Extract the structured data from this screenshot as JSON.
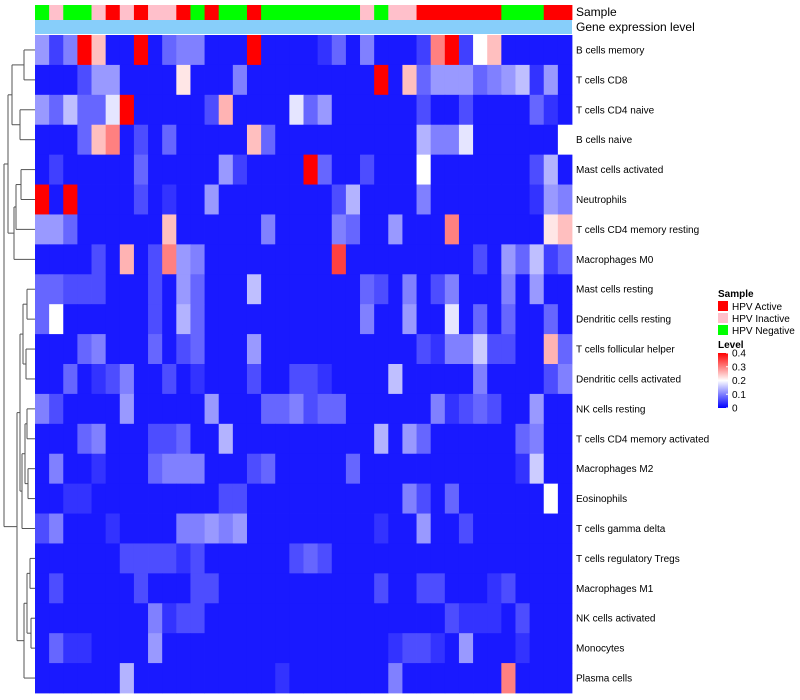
{
  "chart_data": {
    "type": "heatmap",
    "annotation_labels": {
      "sample": "Sample",
      "level": "Gene expression level"
    },
    "samples": [
      "Negative",
      "Inactive",
      "Negative",
      "Negative",
      "Inactive",
      "Active",
      "Inactive",
      "Active",
      "Inactive",
      "Inactive",
      "Active",
      "Negative",
      "Active",
      "Negative",
      "Negative",
      "Active",
      "Negative",
      "Negative",
      "Negative",
      "Negative",
      "Negative",
      "Negative",
      "Negative",
      "Inactive",
      "Negative",
      "Inactive",
      "Inactive",
      "Active",
      "Active",
      "Active",
      "Active",
      "Active",
      "Active",
      "Negative",
      "Negative",
      "Negative",
      "Active",
      "Active"
    ],
    "rows": [
      {
        "name": "B cells memory",
        "values": [
          0.12,
          0.05,
          0.1,
          0.4,
          0.25,
          0.02,
          0.02,
          0.4,
          0.02,
          0.08,
          0.1,
          0.1,
          0.02,
          0.02,
          0.02,
          0.4,
          0.02,
          0.02,
          0.02,
          0.02,
          0.04,
          0.08,
          0.02,
          0.1,
          0.02,
          0.02,
          0.02,
          0.05,
          0.3,
          0.4,
          0.05,
          0.2,
          0.25,
          0.02,
          0.02,
          0.02,
          0.02,
          0.02
        ]
      },
      {
        "name": "T cells CD8",
        "values": [
          0.02,
          0.02,
          0.02,
          0.06,
          0.12,
          0.12,
          0.02,
          0.02,
          0.02,
          0.02,
          0.22,
          0.02,
          0.02,
          0.02,
          0.1,
          0.02,
          0.02,
          0.02,
          0.02,
          0.02,
          0.02,
          0.02,
          0.02,
          0.02,
          0.4,
          0.02,
          0.25,
          0.08,
          0.12,
          0.12,
          0.12,
          0.08,
          0.1,
          0.12,
          0.15,
          0.04,
          0.12,
          0.02
        ]
      },
      {
        "name": "T cells CD4 naive",
        "values": [
          0.12,
          0.08,
          0.15,
          0.08,
          0.08,
          0.18,
          0.4,
          0.02,
          0.02,
          0.02,
          0.02,
          0.02,
          0.06,
          0.26,
          0.02,
          0.02,
          0.02,
          0.02,
          0.18,
          0.08,
          0.12,
          0.02,
          0.02,
          0.02,
          0.02,
          0.02,
          0.02,
          0.06,
          0.02,
          0.02,
          0.06,
          0.02,
          0.02,
          0.02,
          0.02,
          0.08,
          0.04,
          0.02
        ]
      },
      {
        "name": "B cells naive",
        "values": [
          0.02,
          0.02,
          0.02,
          0.08,
          0.25,
          0.3,
          0.02,
          0.06,
          0.02,
          0.08,
          0.02,
          0.02,
          0.02,
          0.02,
          0.02,
          0.25,
          0.08,
          0.02,
          0.02,
          0.02,
          0.02,
          0.02,
          0.02,
          0.02,
          0.02,
          0.02,
          0.02,
          0.14,
          0.1,
          0.1,
          0.18,
          0.02,
          0.02,
          0.02,
          0.02,
          0.02,
          0.02,
          0.2
        ]
      },
      {
        "name": "Mast cells activated",
        "values": [
          0.02,
          0.05,
          0.02,
          0.02,
          0.02,
          0.02,
          0.02,
          0.08,
          0.02,
          0.02,
          0.02,
          0.02,
          0.02,
          0.12,
          0.05,
          0.02,
          0.02,
          0.02,
          0.02,
          0.4,
          0.08,
          0.02,
          0.02,
          0.06,
          0.02,
          0.02,
          0.02,
          0.2,
          0.02,
          0.02,
          0.02,
          0.02,
          0.02,
          0.02,
          0.02,
          0.06,
          0.14,
          0.02
        ]
      },
      {
        "name": "Neutrophils",
        "values": [
          0.4,
          0.02,
          0.4,
          0.02,
          0.02,
          0.02,
          0.02,
          0.06,
          0.02,
          0.04,
          0.02,
          0.02,
          0.12,
          0.02,
          0.02,
          0.02,
          0.02,
          0.02,
          0.02,
          0.02,
          0.02,
          0.06,
          0.14,
          0.02,
          0.02,
          0.02,
          0.02,
          0.1,
          0.02,
          0.02,
          0.02,
          0.02,
          0.02,
          0.02,
          0.02,
          0.04,
          0.12,
          0.1
        ]
      },
      {
        "name": "T cells CD4 memory resting",
        "values": [
          0.12,
          0.12,
          0.08,
          0.02,
          0.02,
          0.02,
          0.02,
          0.02,
          0.02,
          0.25,
          0.02,
          0.02,
          0.02,
          0.02,
          0.02,
          0.02,
          0.1,
          0.02,
          0.02,
          0.02,
          0.02,
          0.1,
          0.08,
          0.02,
          0.02,
          0.12,
          0.02,
          0.02,
          0.02,
          0.3,
          0.02,
          0.02,
          0.02,
          0.02,
          0.02,
          0.02,
          0.22,
          0.25
        ]
      },
      {
        "name": "Macrophages M0",
        "values": [
          0.02,
          0.02,
          0.02,
          0.02,
          0.06,
          0.02,
          0.26,
          0.02,
          0.06,
          0.3,
          0.12,
          0.1,
          0.02,
          0.02,
          0.02,
          0.02,
          0.02,
          0.02,
          0.02,
          0.02,
          0.02,
          0.35,
          0.02,
          0.02,
          0.02,
          0.02,
          0.02,
          0.02,
          0.02,
          0.02,
          0.02,
          0.06,
          0.02,
          0.12,
          0.08,
          0.15,
          0.05,
          0.08
        ]
      },
      {
        "name": "Mast cells resting",
        "values": [
          0.08,
          0.08,
          0.06,
          0.06,
          0.06,
          0.02,
          0.02,
          0.02,
          0.06,
          0.02,
          0.12,
          0.08,
          0.02,
          0.02,
          0.02,
          0.15,
          0.02,
          0.02,
          0.02,
          0.02,
          0.02,
          0.02,
          0.02,
          0.08,
          0.06,
          0.02,
          0.1,
          0.02,
          0.06,
          0.1,
          0.02,
          0.02,
          0.02,
          0.1,
          0.02,
          0.12,
          0.02,
          0.02
        ]
      },
      {
        "name": "Dendritic cells resting",
        "values": [
          0.08,
          0.2,
          0.02,
          0.02,
          0.02,
          0.02,
          0.02,
          0.02,
          0.06,
          0.02,
          0.14,
          0.08,
          0.02,
          0.02,
          0.02,
          0.02,
          0.02,
          0.02,
          0.02,
          0.02,
          0.02,
          0.02,
          0.02,
          0.1,
          0.02,
          0.02,
          0.12,
          0.02,
          0.02,
          0.18,
          0.02,
          0.08,
          0.02,
          0.08,
          0.02,
          0.02,
          0.08,
          0.02
        ]
      },
      {
        "name": "T cells follicular helper",
        "values": [
          0.02,
          0.02,
          0.02,
          0.08,
          0.1,
          0.02,
          0.02,
          0.02,
          0.08,
          0.02,
          0.06,
          0.08,
          0.02,
          0.02,
          0.02,
          0.12,
          0.02,
          0.02,
          0.02,
          0.02,
          0.02,
          0.02,
          0.02,
          0.02,
          0.02,
          0.02,
          0.02,
          0.06,
          0.04,
          0.1,
          0.1,
          0.16,
          0.06,
          0.06,
          0.02,
          0.02,
          0.26,
          0.08
        ]
      },
      {
        "name": "Dendritic cells activated",
        "values": [
          0.02,
          0.02,
          0.08,
          0.02,
          0.04,
          0.06,
          0.1,
          0.02,
          0.02,
          0.06,
          0.02,
          0.04,
          0.02,
          0.02,
          0.02,
          0.06,
          0.02,
          0.02,
          0.06,
          0.06,
          0.04,
          0.02,
          0.02,
          0.02,
          0.02,
          0.15,
          0.02,
          0.02,
          0.02,
          0.02,
          0.02,
          0.1,
          0.02,
          0.02,
          0.02,
          0.02,
          0.06,
          0.1
        ]
      },
      {
        "name": "NK cells resting",
        "values": [
          0.1,
          0.06,
          0.02,
          0.02,
          0.02,
          0.02,
          0.12,
          0.02,
          0.02,
          0.02,
          0.02,
          0.02,
          0.12,
          0.02,
          0.02,
          0.02,
          0.08,
          0.08,
          0.1,
          0.06,
          0.08,
          0.08,
          0.02,
          0.02,
          0.02,
          0.02,
          0.02,
          0.02,
          0.1,
          0.04,
          0.06,
          0.08,
          0.06,
          0.02,
          0.02,
          0.12,
          0.02,
          0.02
        ]
      },
      {
        "name": "T cells CD4 memory activated",
        "values": [
          0.02,
          0.02,
          0.02,
          0.08,
          0.1,
          0.02,
          0.02,
          0.02,
          0.06,
          0.06,
          0.08,
          0.02,
          0.02,
          0.14,
          0.02,
          0.02,
          0.02,
          0.02,
          0.02,
          0.02,
          0.02,
          0.02,
          0.02,
          0.02,
          0.14,
          0.02,
          0.12,
          0.08,
          0.02,
          0.02,
          0.02,
          0.02,
          0.02,
          0.02,
          0.08,
          0.1,
          0.02,
          0.02
        ]
      },
      {
        "name": "Macrophages M2",
        "values": [
          0.02,
          0.1,
          0.02,
          0.02,
          0.04,
          0.02,
          0.02,
          0.02,
          0.08,
          0.1,
          0.1,
          0.1,
          0.02,
          0.02,
          0.02,
          0.06,
          0.08,
          0.02,
          0.02,
          0.02,
          0.02,
          0.02,
          0.08,
          0.02,
          0.02,
          0.02,
          0.02,
          0.02,
          0.02,
          0.02,
          0.02,
          0.02,
          0.02,
          0.02,
          0.04,
          0.16,
          0.02,
          0.02
        ]
      },
      {
        "name": "Eosinophils",
        "values": [
          0.02,
          0.02,
          0.04,
          0.04,
          0.02,
          0.02,
          0.02,
          0.02,
          0.02,
          0.02,
          0.02,
          0.02,
          0.02,
          0.06,
          0.06,
          0.02,
          0.02,
          0.02,
          0.02,
          0.02,
          0.02,
          0.02,
          0.02,
          0.02,
          0.02,
          0.02,
          0.1,
          0.06,
          0.02,
          0.08,
          0.02,
          0.02,
          0.02,
          0.02,
          0.02,
          0.02,
          0.2,
          0.02
        ]
      },
      {
        "name": "T cells gamma delta",
        "values": [
          0.06,
          0.1,
          0.02,
          0.02,
          0.02,
          0.04,
          0.02,
          0.02,
          0.02,
          0.02,
          0.1,
          0.1,
          0.12,
          0.1,
          0.12,
          0.02,
          0.02,
          0.02,
          0.02,
          0.02,
          0.02,
          0.02,
          0.02,
          0.02,
          0.04,
          0.02,
          0.02,
          0.12,
          0.02,
          0.02,
          0.06,
          0.02,
          0.02,
          0.02,
          0.02,
          0.02,
          0.02,
          0.02
        ]
      },
      {
        "name": "T cells regulatory  Tregs",
        "values": [
          0.02,
          0.02,
          0.02,
          0.02,
          0.02,
          0.02,
          0.06,
          0.06,
          0.06,
          0.06,
          0.04,
          0.06,
          0.02,
          0.02,
          0.02,
          0.02,
          0.02,
          0.02,
          0.06,
          0.08,
          0.06,
          0.02,
          0.02,
          0.02,
          0.02,
          0.02,
          0.02,
          0.02,
          0.02,
          0.02,
          0.02,
          0.02,
          0.02,
          0.02,
          0.02,
          0.02,
          0.02,
          0.02
        ]
      },
      {
        "name": "Macrophages M1",
        "values": [
          0.02,
          0.06,
          0.02,
          0.02,
          0.02,
          0.02,
          0.02,
          0.06,
          0.02,
          0.02,
          0.02,
          0.06,
          0.06,
          0.02,
          0.02,
          0.02,
          0.02,
          0.02,
          0.02,
          0.02,
          0.02,
          0.02,
          0.02,
          0.02,
          0.06,
          0.02,
          0.02,
          0.06,
          0.06,
          0.02,
          0.02,
          0.02,
          0.04,
          0.06,
          0.02,
          0.02,
          0.02,
          0.02
        ]
      },
      {
        "name": "NK cells activated",
        "values": [
          0.02,
          0.02,
          0.02,
          0.02,
          0.02,
          0.02,
          0.02,
          0.02,
          0.1,
          0.04,
          0.06,
          0.06,
          0.02,
          0.02,
          0.02,
          0.02,
          0.02,
          0.02,
          0.02,
          0.02,
          0.02,
          0.02,
          0.02,
          0.02,
          0.02,
          0.02,
          0.02,
          0.02,
          0.02,
          0.06,
          0.04,
          0.04,
          0.04,
          0.02,
          0.06,
          0.02,
          0.02,
          0.02
        ]
      },
      {
        "name": "Monocytes",
        "values": [
          0.02,
          0.08,
          0.04,
          0.04,
          0.02,
          0.02,
          0.02,
          0.02,
          0.12,
          0.02,
          0.02,
          0.02,
          0.02,
          0.02,
          0.02,
          0.02,
          0.02,
          0.02,
          0.02,
          0.02,
          0.02,
          0.02,
          0.02,
          0.02,
          0.02,
          0.04,
          0.06,
          0.06,
          0.04,
          0.02,
          0.12,
          0.02,
          0.02,
          0.02,
          0.04,
          0.02,
          0.02,
          0.02
        ]
      },
      {
        "name": "Plasma cells",
        "values": [
          0.02,
          0.02,
          0.02,
          0.02,
          0.02,
          0.02,
          0.14,
          0.02,
          0.02,
          0.02,
          0.02,
          0.02,
          0.02,
          0.02,
          0.02,
          0.02,
          0.02,
          0.04,
          0.02,
          0.02,
          0.02,
          0.02,
          0.02,
          0.02,
          0.02,
          0.1,
          0.02,
          0.02,
          0.02,
          0.02,
          0.02,
          0.02,
          0.02,
          0.3,
          0.02,
          0.02,
          0.02,
          0.02
        ]
      }
    ],
    "legend_sample": {
      "title": "Sample",
      "entries": [
        {
          "key": "Active",
          "label": "HPV Active",
          "color": "#ff0000"
        },
        {
          "key": "Inactive",
          "label": "HPV Inactive",
          "color": "#ffc0cb"
        },
        {
          "key": "Negative",
          "label": "HPV Negative",
          "color": "#00ff00"
        }
      ]
    },
    "legend_level": {
      "title": "Level",
      "ticks": [
        0.4,
        0.3,
        0.2,
        0.1,
        0
      ],
      "tick_labels": [
        "0.4",
        "0.3",
        "0.2",
        "0.1",
        "0"
      ],
      "range": [
        0,
        0.4
      ]
    },
    "colors": {
      "low": "#0000ff",
      "mid": "#ffffff",
      "high": "#ff0000",
      "level_bar": "#87cefa",
      "dendrogram": "#555555"
    }
  }
}
